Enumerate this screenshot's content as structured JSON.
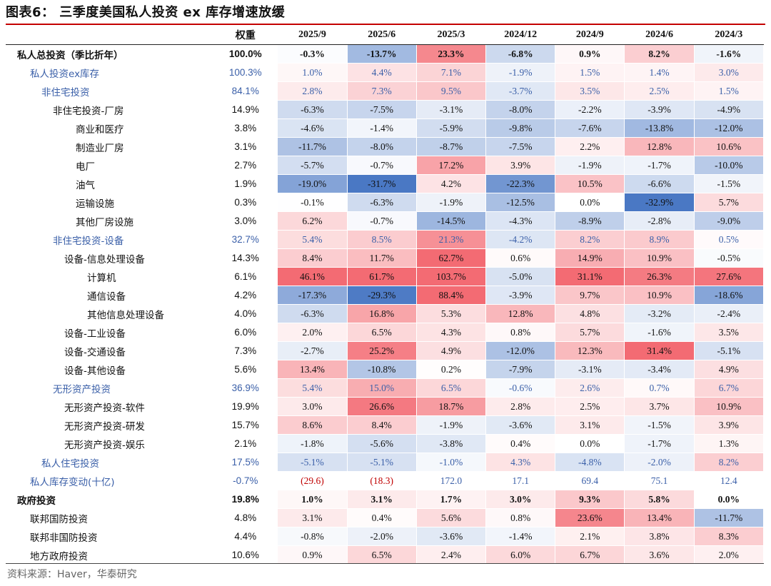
{
  "title": "图表6：  三季度美国私人投资 ex 库存增速放缓",
  "source": "资料来源：Haver，华泰研究",
  "colors": {
    "pos": "#f36b73",
    "neg": "#4a78c4",
    "accent": "#c40000",
    "blue_text": "#3a5fa8"
  },
  "chart_data": {
    "type": "table",
    "title": "三季度美国私人投资 ex 库存增速放缓",
    "columns": [
      "权重",
      "2025/9",
      "2025/6",
      "2025/3",
      "2024/12",
      "2024/9",
      "2024/6",
      "2024/3"
    ],
    "rows": [
      {
        "label": "私人总投资（季比折年）",
        "indent": 0,
        "style": "bold",
        "weight": "100.0%",
        "values": [
          "-0.3%",
          "-13.7%",
          "23.3%",
          "-6.8%",
          "0.9%",
          "8.2%",
          "-1.6%"
        ]
      },
      {
        "label": "私人投资ex库存",
        "indent": 1,
        "style": "blue",
        "weight": "100.3%",
        "values": [
          "1.0%",
          "4.4%",
          "7.1%",
          "-1.9%",
          "1.5%",
          "1.4%",
          "3.0%"
        ]
      },
      {
        "label": "非住宅投资",
        "indent": 2,
        "style": "blue",
        "weight": "84.1%",
        "values": [
          "2.8%",
          "7.3%",
          "9.5%",
          "-3.7%",
          "3.5%",
          "2.5%",
          "1.5%"
        ]
      },
      {
        "label": "非住宅投资-厂房",
        "indent": 3,
        "style": "normal",
        "weight": "14.9%",
        "values": [
          "-6.3%",
          "-7.5%",
          "-3.1%",
          "-8.0%",
          "-2.2%",
          "-3.9%",
          "-4.9%"
        ]
      },
      {
        "label": "商业和医疗",
        "indent": 5,
        "style": "normal",
        "weight": "3.8%",
        "values": [
          "-4.6%",
          "-1.4%",
          "-5.9%",
          "-9.8%",
          "-7.6%",
          "-13.8%",
          "-12.0%"
        ]
      },
      {
        "label": "制造业厂房",
        "indent": 5,
        "style": "normal",
        "weight": "3.1%",
        "values": [
          "-11.7%",
          "-8.0%",
          "-8.7%",
          "-7.5%",
          "2.2%",
          "12.8%",
          "10.6%"
        ]
      },
      {
        "label": "电厂",
        "indent": 5,
        "style": "normal",
        "weight": "2.7%",
        "values": [
          "-5.7%",
          "-0.7%",
          "17.2%",
          "3.9%",
          "-1.9%",
          "-1.7%",
          "-10.0%"
        ]
      },
      {
        "label": "油气",
        "indent": 5,
        "style": "normal",
        "weight": "1.9%",
        "values": [
          "-19.0%",
          "-31.7%",
          "4.2%",
          "-22.3%",
          "10.5%",
          "-6.6%",
          "-1.5%"
        ]
      },
      {
        "label": "运输设施",
        "indent": 5,
        "style": "normal",
        "weight": "0.3%",
        "values": [
          "-0.1%",
          "-6.3%",
          "-1.9%",
          "-12.5%",
          "0.0%",
          "-32.9%",
          "5.7%"
        ]
      },
      {
        "label": "其他厂房设施",
        "indent": 5,
        "style": "normal",
        "weight": "3.0%",
        "values": [
          "6.2%",
          "-0.7%",
          "-14.5%",
          "-4.3%",
          "-8.9%",
          "-2.8%",
          "-9.0%"
        ]
      },
      {
        "label": "非住宅投资-设备",
        "indent": 3,
        "style": "blue",
        "weight": "32.7%",
        "values": [
          "5.4%",
          "8.5%",
          "21.3%",
          "-4.2%",
          "8.2%",
          "8.9%",
          "0.5%"
        ]
      },
      {
        "label": "设备-信息处理设备",
        "indent": 4,
        "style": "normal",
        "weight": "14.3%",
        "values": [
          "8.4%",
          "11.7%",
          "62.7%",
          "0.6%",
          "14.9%",
          "10.9%",
          "-0.5%"
        ]
      },
      {
        "label": "计算机",
        "indent": 6,
        "style": "normal",
        "weight": "6.1%",
        "values": [
          "46.1%",
          "61.7%",
          "103.7%",
          "-5.0%",
          "31.1%",
          "26.3%",
          "27.6%"
        ]
      },
      {
        "label": "通信设备",
        "indent": 6,
        "style": "normal",
        "weight": "4.2%",
        "values": [
          "-17.3%",
          "-29.3%",
          "88.4%",
          "-3.9%",
          "9.7%",
          "10.9%",
          "-18.6%"
        ]
      },
      {
        "label": "其他信息处理设备",
        "indent": 6,
        "style": "normal",
        "weight": "4.0%",
        "values": [
          "-6.3%",
          "16.8%",
          "5.3%",
          "12.8%",
          "4.8%",
          "-3.2%",
          "-2.4%"
        ]
      },
      {
        "label": "设备-工业设备",
        "indent": 4,
        "style": "normal",
        "weight": "6.0%",
        "values": [
          "2.0%",
          "6.5%",
          "4.3%",
          "0.8%",
          "5.7%",
          "-1.6%",
          "3.5%"
        ]
      },
      {
        "label": "设备-交通设备",
        "indent": 4,
        "style": "normal",
        "weight": "7.3%",
        "values": [
          "-2.7%",
          "25.2%",
          "4.9%",
          "-12.0%",
          "12.3%",
          "31.4%",
          "-5.1%"
        ]
      },
      {
        "label": "设备-其他设备",
        "indent": 4,
        "style": "normal",
        "weight": "5.6%",
        "values": [
          "13.4%",
          "-10.8%",
          "0.2%",
          "-7.9%",
          "-3.1%",
          "-3.4%",
          "4.9%"
        ]
      },
      {
        "label": "无形资产投资",
        "indent": 3,
        "style": "blue",
        "weight": "36.9%",
        "values": [
          "5.4%",
          "15.0%",
          "6.5%",
          "-0.6%",
          "2.6%",
          "0.7%",
          "6.7%"
        ]
      },
      {
        "label": "无形资产投资-软件",
        "indent": 4,
        "style": "normal",
        "weight": "19.9%",
        "values": [
          "3.0%",
          "26.6%",
          "18.7%",
          "2.8%",
          "2.5%",
          "3.7%",
          "10.9%"
        ]
      },
      {
        "label": "无形资产投资-研发",
        "indent": 4,
        "style": "normal",
        "weight": "15.7%",
        "values": [
          "8.6%",
          "8.4%",
          "-1.9%",
          "-3.6%",
          "3.1%",
          "-1.5%",
          "3.9%"
        ]
      },
      {
        "label": "无形资产投资-娱乐",
        "indent": 4,
        "style": "normal",
        "weight": "2.1%",
        "values": [
          "-1.8%",
          "-5.6%",
          "-3.8%",
          "0.4%",
          "0.0%",
          "-1.7%",
          "1.3%"
        ]
      },
      {
        "label": "私人住宅投资",
        "indent": 2,
        "style": "blue",
        "weight": "17.5%",
        "values": [
          "-5.1%",
          "-5.1%",
          "-1.0%",
          "4.3%",
          "-4.8%",
          "-2.0%",
          "8.2%"
        ]
      },
      {
        "label": "私人库存变动(十亿)",
        "indent": 1,
        "style": "blue-nofill",
        "weight": "-0.7%",
        "values": [
          "(29.6)",
          "(18.3)",
          "172.0",
          "17.1",
          "69.4",
          "75.1",
          "12.4"
        ]
      },
      {
        "label": "政府投资",
        "indent": 0,
        "style": "bold",
        "weight": "19.8%",
        "values": [
          "1.0%",
          "3.1%",
          "1.7%",
          "3.0%",
          "9.3%",
          "5.8%",
          "0.0%"
        ]
      },
      {
        "label": "联邦国防投资",
        "indent": 1,
        "style": "normal",
        "weight": "4.8%",
        "values": [
          "3.1%",
          "0.4%",
          "5.6%",
          "0.8%",
          "23.6%",
          "13.4%",
          "-11.7%"
        ]
      },
      {
        "label": "联邦非国防投资",
        "indent": 1,
        "style": "normal",
        "weight": "4.4%",
        "values": [
          "-0.8%",
          "-2.0%",
          "-3.6%",
          "-1.4%",
          "2.1%",
          "3.8%",
          "8.3%"
        ]
      },
      {
        "label": "地方政府投资",
        "indent": 1,
        "style": "normal",
        "weight": "10.6%",
        "values": [
          "0.9%",
          "6.5%",
          "2.4%",
          "6.0%",
          "6.7%",
          "3.6%",
          "2.0%"
        ]
      }
    ]
  }
}
